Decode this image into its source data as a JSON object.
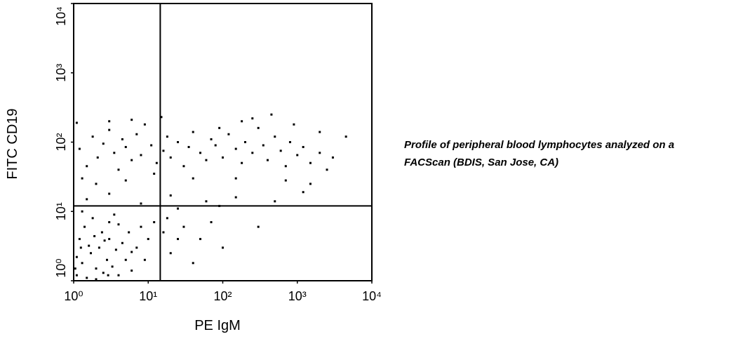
{
  "chart_data": {
    "type": "scatter",
    "x_label": "PE IgM",
    "y_label": "FITC CD19",
    "caption_lines": [
      "Profile of peripheral blood lymphocytes analyzed on a",
      "FACScan (BDIS, San Jose, CA)"
    ],
    "xlog": true,
    "ylog": true,
    "xlim": [
      1,
      10000
    ],
    "ylim": [
      1,
      10000
    ],
    "xticks": [
      {
        "value": 1,
        "label": "10⁰"
      },
      {
        "value": 10,
        "label": "10¹"
      },
      {
        "value": 100,
        "label": "10²"
      },
      {
        "value": 1000,
        "label": "10³"
      },
      {
        "value": 10000,
        "label": "10⁴"
      }
    ],
    "yticks": [
      {
        "value": 1,
        "label": "10⁰"
      },
      {
        "value": 10,
        "label": "10¹"
      },
      {
        "value": 100,
        "label": "10²"
      },
      {
        "value": 1000,
        "label": "10³"
      },
      {
        "value": 10000,
        "label": "10⁴"
      }
    ],
    "quadrant_x": 14.5,
    "quadrant_y": 12,
    "color": "#000000",
    "x": [
      1.2,
      1.5,
      1.8,
      2.1,
      2.5,
      3,
      3.5,
      4,
      4.5,
      5,
      6,
      7,
      8,
      9,
      11,
      13,
      16,
      18,
      20,
      25,
      30,
      35,
      40,
      50,
      60,
      70,
      80,
      100,
      120,
      150,
      180,
      200,
      250,
      300,
      350,
      400,
      500,
      600,
      700,
      800,
      1000,
      1200,
      1500,
      2000,
      2500,
      3000,
      4500,
      250,
      450,
      1.3,
      2,
      5,
      12,
      40,
      150,
      700,
      1500,
      1.1,
      6,
      15,
      3,
      90,
      180,
      900,
      2000,
      1.5,
      3,
      8,
      20,
      60,
      150,
      500,
      1200,
      25,
      90,
      18,
      30,
      50,
      100,
      20,
      70,
      300,
      40,
      25,
      16,
      1.1,
      1.3,
      1.5,
      1.7,
      2,
      2.2,
      2.5,
      2.8,
      3,
      3.3,
      3.7,
      4,
      4.5,
      5,
      5.5,
      6,
      7,
      8,
      9,
      10,
      1.2,
      1.4,
      1.8,
      2.4,
      3,
      1.1,
      1.6,
      2.6,
      3.5,
      1.3,
      12,
      4,
      2,
      1.05,
      6,
      1.9,
      2.9,
      1.25
    ],
    "y": [
      80,
      45,
      120,
      60,
      95,
      150,
      70,
      40,
      110,
      85,
      55,
      130,
      65,
      180,
      90,
      50,
      75,
      120,
      60,
      100,
      45,
      85,
      140,
      70,
      55,
      110,
      90,
      60,
      130,
      80,
      50,
      100,
      70,
      160,
      90,
      55,
      120,
      75,
      45,
      100,
      65,
      85,
      50,
      70,
      40,
      60,
      120,
      220,
      250,
      30,
      25,
      28,
      35,
      30,
      30,
      28,
      25,
      190,
      210,
      230,
      200,
      160,
      200,
      180,
      140,
      15,
      18,
      13,
      17,
      14,
      16,
      14,
      19,
      11,
      12,
      8,
      6,
      4,
      3,
      2.5,
      7,
      6,
      1.8,
      4,
      5,
      1.2,
      1.8,
      1.1,
      2.5,
      1.5,
      3,
      1.3,
      2,
      4,
      1.6,
      2.8,
      1.2,
      3.5,
      2,
      5,
      1.4,
      3,
      6,
      2,
      4,
      4,
      6,
      8,
      5,
      7,
      2.2,
      3.2,
      3.8,
      9,
      10,
      7,
      6.5,
      1.05,
      1.5,
      2.6,
      4.4,
      1.2,
      3
    ]
  }
}
